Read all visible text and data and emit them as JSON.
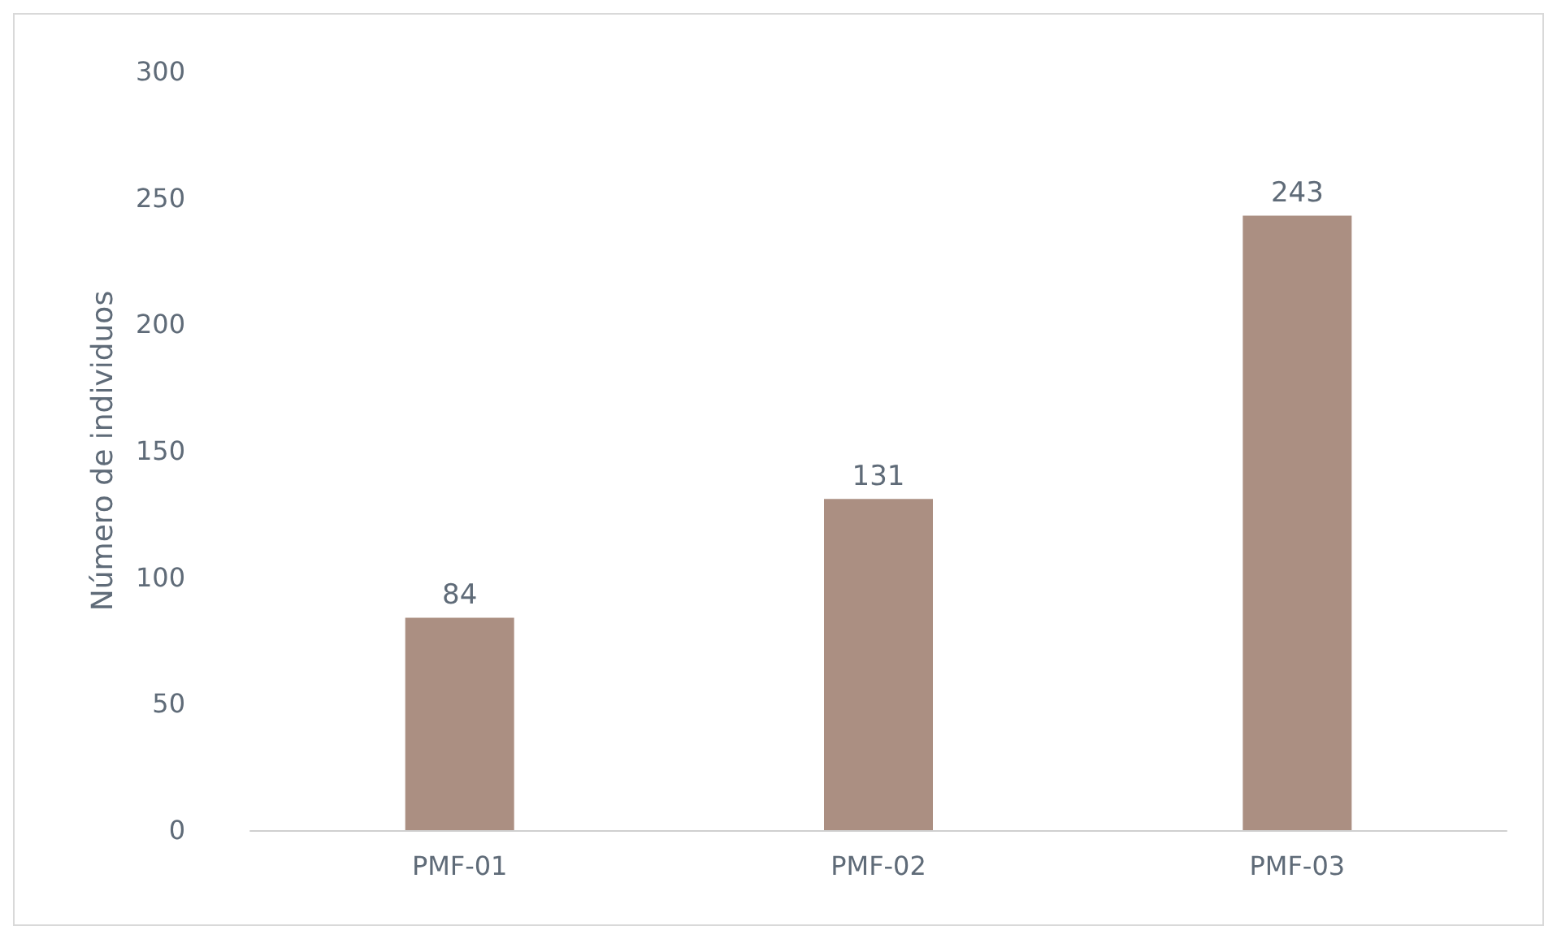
{
  "chart_data": {
    "type": "bar",
    "ylabel": "Número de individuos",
    "categories": [
      "PMF-01",
      "PMF-02",
      "PMF-03"
    ],
    "values": [
      84,
      131,
      243
    ],
    "color": "#ab8f82",
    "ylim": [
      0,
      300
    ],
    "yticks": [
      0,
      50,
      100,
      150,
      200,
      250,
      300
    ],
    "grid": false,
    "data_labels": true
  }
}
